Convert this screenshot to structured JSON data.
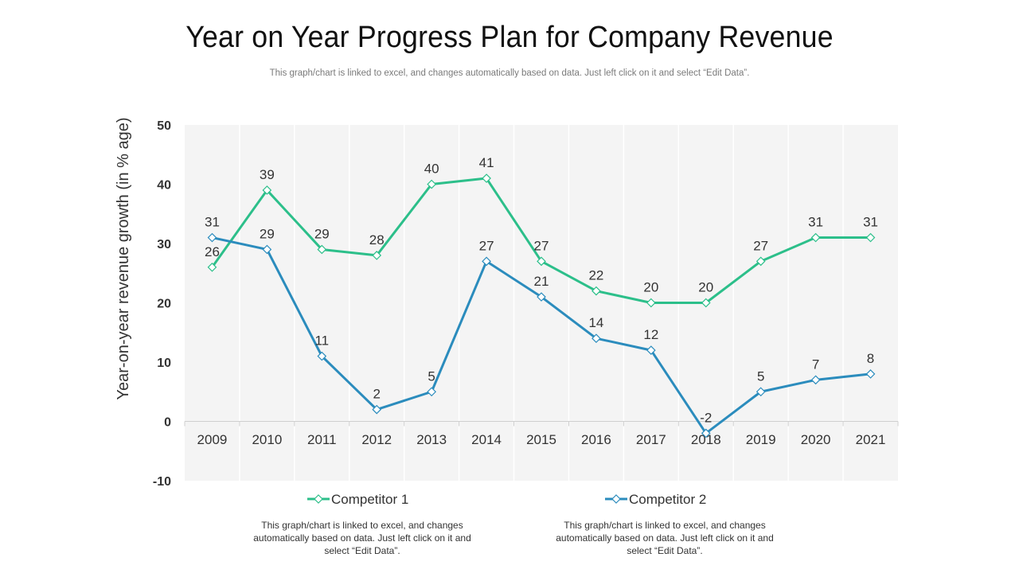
{
  "page": {
    "title": "Year on Year Progress Plan for Company Revenue",
    "subtitle": "This graph/chart is linked to excel, and changes automatically based on data. Just left click on it and select “Edit Data”.",
    "notes": [
      "This graph/chart is linked to excel, and changes automatically based on data. Just left click on it and select “Edit Data”.",
      "This graph/chart is linked to excel, and changes automatically based on data. Just left click on it and select “Edit Data”."
    ]
  },
  "chart_data": {
    "type": "line",
    "title": "Year on Year Progress Plan for Company Revenue",
    "xlabel": "",
    "ylabel": "Year-on-year revenue growth (in % age)",
    "ylim": [
      -10,
      50
    ],
    "yticks": [
      -10,
      0,
      10,
      20,
      30,
      40,
      50
    ],
    "categories": [
      "2009",
      "2010",
      "2011",
      "2012",
      "2013",
      "2014",
      "2015",
      "2016",
      "2017",
      "2018",
      "2019",
      "2020",
      "2021"
    ],
    "series": [
      {
        "name": "Competitor 1",
        "color": "#2cbf8a",
        "values": [
          26,
          39,
          29,
          28,
          40,
          41,
          27,
          22,
          20,
          20,
          27,
          31,
          31
        ]
      },
      {
        "name": "Competitor 2",
        "color": "#2b8cbd",
        "values": [
          31,
          29,
          11,
          2,
          5,
          27,
          21,
          14,
          12,
          -2,
          5,
          7,
          8
        ]
      }
    ],
    "legend_position": "bottom",
    "grid": false
  }
}
